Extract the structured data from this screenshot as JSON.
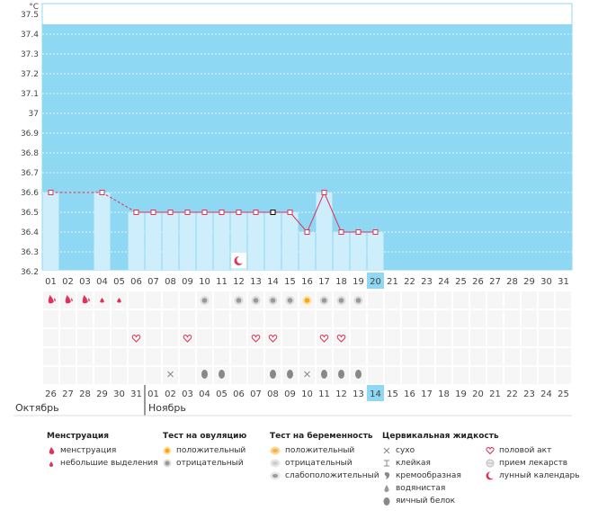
{
  "chart_data": {
    "type": "line",
    "ylabel": "°C",
    "ylim": [
      36.2,
      37.6
    ],
    "y_ticks": [
      "37.5",
      "37.4",
      "37.3",
      "37.2",
      "37.1",
      "37",
      "36.9",
      "36.8",
      "36.7",
      "36.6",
      "36.5",
      "36.4",
      "36.3",
      "36.2"
    ],
    "cycle_days": [
      "01",
      "02",
      "03",
      "04",
      "05",
      "06",
      "07",
      "08",
      "09",
      "10",
      "11",
      "12",
      "13",
      "14",
      "15",
      "16",
      "17",
      "18",
      "19",
      "20",
      "21",
      "22",
      "23",
      "24",
      "25",
      "26",
      "27",
      "28",
      "29",
      "30",
      "31"
    ],
    "current_cycle_day": "20",
    "temperatures": [
      36.6,
      null,
      null,
      36.6,
      null,
      36.5,
      36.5,
      36.5,
      36.5,
      36.5,
      36.5,
      36.5,
      36.5,
      36.5,
      36.5,
      36.4,
      36.6,
      36.4,
      36.4,
      36.4
    ],
    "selected_day": "14",
    "moon_day": "12",
    "calendar_dates": [
      "26",
      "27",
      "28",
      "29",
      "30",
      "31",
      "01",
      "02",
      "03",
      "04",
      "05",
      "06",
      "07",
      "08",
      "09",
      "10",
      "11",
      "12",
      "13",
      "14",
      "15",
      "16",
      "17",
      "18",
      "19",
      "20",
      "21",
      "22",
      "23",
      "24",
      "25"
    ],
    "weekend_dates_index": [
      0,
      1,
      7,
      8,
      15,
      16,
      22,
      23
    ],
    "today_date": "14",
    "months": [
      "Октябрь",
      "Ноябрь"
    ],
    "rows": {
      "menstruation": [
        "big",
        "big",
        "big",
        "small",
        "small",
        null,
        null,
        null,
        null,
        null,
        null,
        null,
        null,
        null,
        null,
        null,
        null,
        null,
        null,
        null
      ],
      "ovulation": [
        null,
        null,
        null,
        null,
        null,
        null,
        null,
        null,
        null,
        "neg",
        null,
        "neg",
        "neg",
        "neg",
        "neg",
        "pos",
        "neg",
        "neg",
        "neg",
        null
      ],
      "sex": [
        null,
        null,
        null,
        null,
        null,
        "sex",
        null,
        null,
        "sex",
        null,
        null,
        null,
        "sex",
        "sex",
        null,
        null,
        "sex",
        "sex",
        null,
        null
      ],
      "cervical": [
        null,
        null,
        null,
        null,
        null,
        null,
        null,
        "dry",
        null,
        "egg",
        "egg",
        null,
        null,
        "egg",
        "egg",
        "dry",
        "egg",
        "egg",
        "egg",
        null
      ]
    },
    "colors": {
      "plot_bg": "#8ed8f3",
      "bar_fill": "#cfeefb",
      "line": "#e0325a",
      "today": "#8ed8f3",
      "weekend": "#e0325a"
    }
  },
  "legend": {
    "menstruation": {
      "title": "Менструация",
      "items": [
        "менструация",
        "небольшие выделения"
      ]
    },
    "ovulation_test": {
      "title": "Тест на овуляцию",
      "items": [
        "положительный",
        "отрицательный"
      ]
    },
    "pregnancy_test": {
      "title": "Тест на беременность",
      "items": [
        "положительный",
        "отрицательный",
        "слабоположительный"
      ]
    },
    "cervical_fluid": {
      "title": "Цервикальная жидкость",
      "items": [
        "сухо",
        "клейкая",
        "кремообразная",
        "водянистая",
        "яичный белок"
      ]
    },
    "other": {
      "items": [
        "половой акт",
        "прием лекарств",
        "лунный календарь"
      ]
    }
  }
}
